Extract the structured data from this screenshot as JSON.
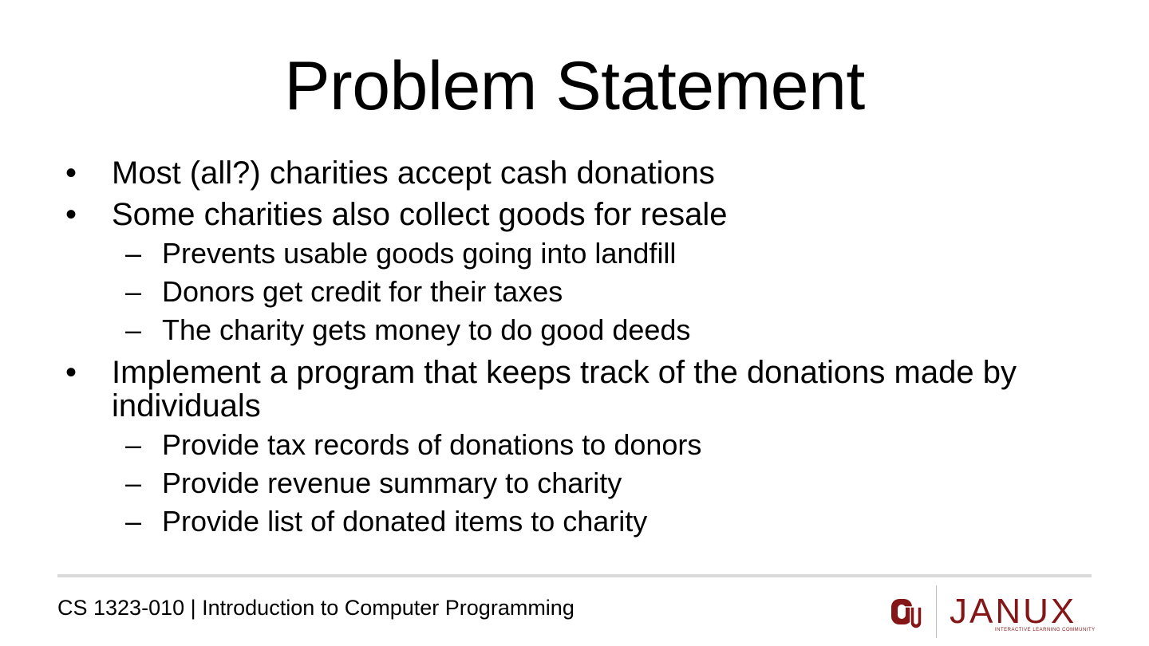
{
  "slide": {
    "title": "Problem Statement",
    "bullet_symbol": "•",
    "sub_symbol": "–",
    "bullets": [
      {
        "text": "Most (all?) charities accept cash donations",
        "subs": []
      },
      {
        "text": "Some charities also collect goods for resale",
        "subs": [
          "Prevents usable goods going into landfill",
          "Donors get credit for their taxes",
          "The charity gets money to do good deeds"
        ]
      },
      {
        "text": "Implement a program that keeps track of the donations made by individuals",
        "subs": [
          "Provide tax records of donations to donors",
          "Provide revenue summary to charity",
          "Provide list of donated items to charity"
        ]
      }
    ]
  },
  "footer": {
    "course": "CS 1323-010 | Introduction to Computer Programming",
    "logo_name": "JANUX",
    "logo_tagline": "INTERACTIVE LEARNING COMMUNITY",
    "logo_mark": "OU",
    "brand_color": "#841617"
  }
}
